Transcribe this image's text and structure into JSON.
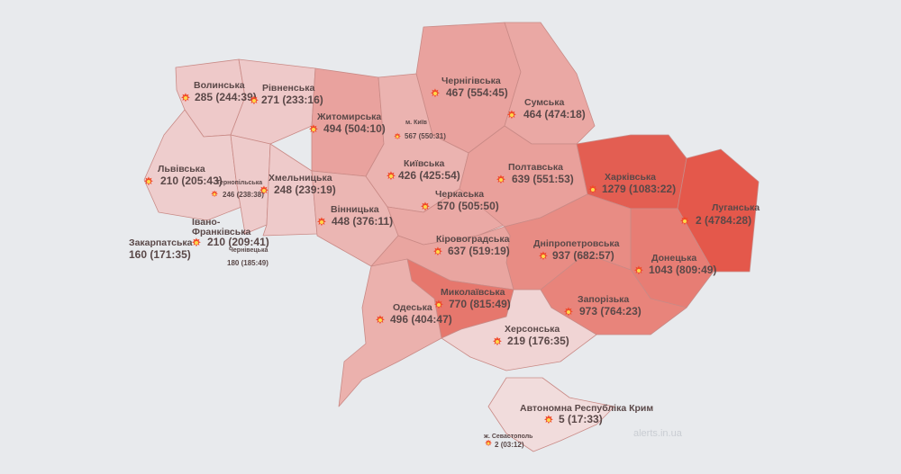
{
  "watermark": "alerts.in.ua",
  "regions": [
    {
      "name": "Волинська",
      "count": "285",
      "duration": "244:39",
      "color": "#eec9c9"
    },
    {
      "name": "Рівненська",
      "count": "271",
      "duration": "233:16",
      "color": "#eec9c9"
    },
    {
      "name": "Житомирська",
      "count": "494",
      "duration": "504:10",
      "color": "#e9a29e"
    },
    {
      "name": "м. Київ",
      "count": "567",
      "duration": "550:31",
      "color": "#eab3b0"
    },
    {
      "name": "Чернігівська",
      "count": "467",
      "duration": "554:45",
      "color": "#e9a29e"
    },
    {
      "name": "Сумська",
      "count": "464",
      "duration": "474:18",
      "color": "#eaa8a4"
    },
    {
      "name": "Львівська",
      "count": "210",
      "duration": "205:43",
      "color": "#eecdcd"
    },
    {
      "name": "Тернопільська",
      "count": "246",
      "duration": "238:38",
      "color": "#eecbcb"
    },
    {
      "name": "Хмельницька",
      "count": "248",
      "duration": "239:19",
      "color": "#eecaca"
    },
    {
      "name": "Вінницька",
      "count": "448",
      "duration": "376:11",
      "color": "#ebb6b3"
    },
    {
      "name": "Київська",
      "count": "426",
      "duration": "425:54",
      "color": "#ebb3b0"
    },
    {
      "name": "Черкаська",
      "count": "570",
      "duration": "505:50",
      "color": "#eaa9a5"
    },
    {
      "name": "Полтавська",
      "count": "639",
      "duration": "551:53",
      "color": "#e9a09b"
    },
    {
      "name": "Харківська",
      "count": "1279",
      "duration": "1083:22",
      "color": "#e35e52"
    },
    {
      "name": "Луганська",
      "count": "2",
      "duration": "4784:28",
      "color": "#e4584b"
    },
    {
      "name": "Дніпропетровська",
      "count": "937",
      "duration": "682:57",
      "color": "#e88c84"
    },
    {
      "name": "Донецька",
      "count": "1043",
      "duration": "809:49",
      "color": "#e77d74"
    },
    {
      "name": "Запорізька",
      "count": "973",
      "duration": "764:23",
      "color": "#e8847b"
    },
    {
      "name": "Кіровоградська",
      "count": "637",
      "duration": "519:19",
      "color": "#e9a5a0"
    },
    {
      "name": "Миколаївська",
      "count": "770",
      "duration": "815:49",
      "color": "#e6776d"
    },
    {
      "name": "Одеська",
      "count": "496",
      "duration": "404:47",
      "color": "#ebb1ad"
    },
    {
      "name": "Херсонська",
      "count": "219",
      "duration": "176:35",
      "color": "#f0d4d4"
    },
    {
      "name": "Автономна Республіка Крим",
      "count": "5",
      "duration": "17:33",
      "color": "#f1dcdc"
    },
    {
      "name": "ж. Севастополь",
      "count": "2",
      "duration": "03:12",
      "color": "#f1dcdc"
    },
    {
      "name": "Закарпатська",
      "count": "160",
      "duration": "171:35",
      "color": "#f0d3d3"
    },
    {
      "name": "Івано-\nФранківська",
      "count": "210",
      "duration": "209:41",
      "color": "#efcfcf"
    },
    {
      "name": "Чернівецька",
      "count": "180",
      "duration": "185:49",
      "color": "#efd0d0"
    }
  ]
}
